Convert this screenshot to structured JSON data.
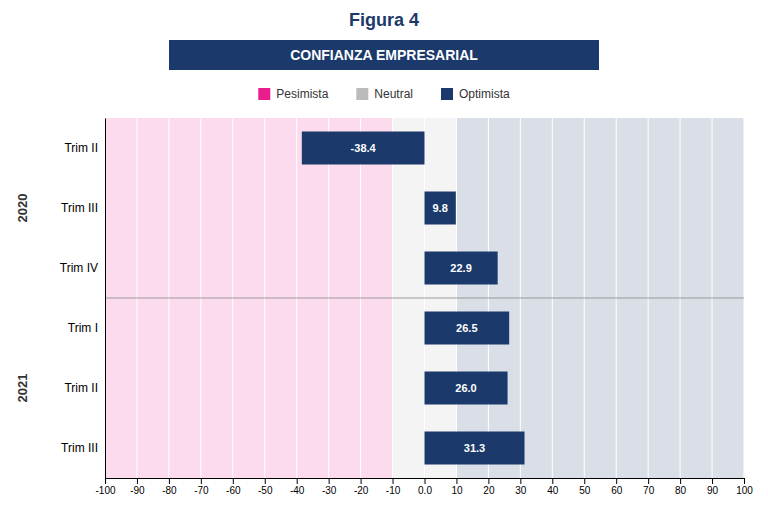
{
  "chart_data": {
    "type": "bar",
    "orientation": "horizontal",
    "title": "Figura 4",
    "subtitle": "CONFIANZA EMPRESARIAL",
    "categories": [
      "Trim II",
      "Trim III",
      "Trim IV",
      "Trim I",
      "Trim II",
      "Trim III"
    ],
    "groups": [
      "2020",
      "2020",
      "2020",
      "2021",
      "2021",
      "2021"
    ],
    "values": [
      -38.4,
      9.8,
      22.9,
      26.5,
      26.0,
      31.3
    ],
    "value_labels": [
      "-38.4",
      "9.8",
      "22.9",
      "26.5",
      "26.0",
      "31.3"
    ],
    "data_labels": true,
    "color": "#1B3A6B",
    "xlim": [
      -100,
      100
    ],
    "xticks": [
      -100,
      -90,
      -80,
      -70,
      -60,
      -50,
      -40,
      -30,
      -20,
      -10,
      {
        "value": 0,
        "label": "0.0"
      },
      10,
      20,
      30,
      40,
      50,
      60,
      70,
      80,
      90,
      100
    ],
    "grid": true,
    "regions": [
      {
        "name": "Pesimista",
        "color": "#E91E8C",
        "range": [
          -100,
          -10
        ]
      },
      {
        "name": "Neutral",
        "color": "#BBBBBB",
        "range": [
          -10,
          10
        ]
      },
      {
        "name": "Optimista",
        "color": "#1B3A6B",
        "range": [
          10,
          100
        ]
      }
    ]
  }
}
